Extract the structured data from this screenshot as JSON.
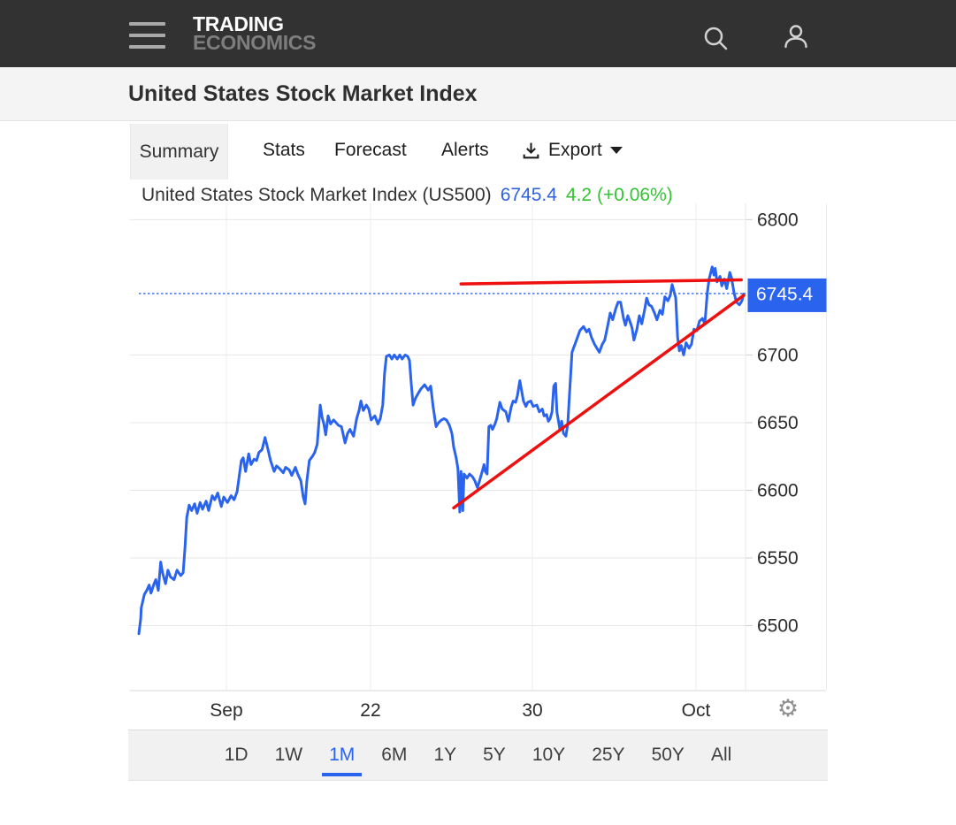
{
  "header": {
    "logo_line1": "TRADING",
    "logo_line2": "ECONOMICS"
  },
  "icons": {
    "settings_glyph": "⚙",
    "menu": "hamburger-menu",
    "search": "magnifier",
    "account": "person-outline",
    "export": "download-arrow-tray",
    "caret": "caret-down"
  },
  "title_bar": {
    "title": "United States Stock Market Index"
  },
  "tabs": {
    "items": [
      {
        "label": "Summary",
        "active": true
      },
      {
        "label": "Stats",
        "active": false
      },
      {
        "label": "Forecast",
        "active": false
      },
      {
        "label": "Alerts",
        "active": false
      }
    ],
    "export_label": "Export"
  },
  "chart": {
    "title": "United States Stock Market Index (US500)",
    "price": "6745.4",
    "change": "4.2 (+0.06%)",
    "price_tag": "6745.4",
    "colors": {
      "line": "#2a63ee",
      "tag_bg": "#2a63ee",
      "trend": "#ee0f0f",
      "price_text": "#2e61de",
      "change_text": "#33c333",
      "grid_h": "#e7e7e7",
      "grid_v": "#ececec",
      "axis": "#d9d9d9",
      "tick": "#cfcfcf",
      "label": "#2b2b2b"
    }
  },
  "chart_data": {
    "type": "line",
    "title": "United States Stock Market Index (US500)",
    "last_price": 6745.4,
    "change": 4.2,
    "change_pct": "+0.06%",
    "ylim": [
      6452,
      6812
    ],
    "y_ticks": [
      6800,
      6700,
      6650,
      6600,
      6550,
      6500
    ],
    "x_ticks": [
      {
        "pct": 14.43,
        "label": "Sep"
      },
      {
        "pct": 38.19,
        "label": "22"
      },
      {
        "pct": 64.87,
        "label": "30"
      },
      {
        "pct": 91.84,
        "label": "Oct"
      }
    ],
    "current_price_line": 6745.4,
    "trendlines": [
      {
        "name": "resistance",
        "from": [
          53.1,
          6752.5
        ],
        "to": [
          99.3,
          6755.5
        ]
      },
      {
        "name": "support",
        "from": [
          51.9,
          6587
        ],
        "to": [
          99.7,
          6744
        ]
      }
    ],
    "series": [
      [
        0,
        6494
      ],
      [
        0.3,
        6505
      ],
      [
        0.4,
        6513
      ],
      [
        0.9,
        6523
      ],
      [
        1.3,
        6526
      ],
      [
        1.7,
        6530
      ],
      [
        2.0,
        6524
      ],
      [
        2.5,
        6531
      ],
      [
        2.8,
        6534
      ],
      [
        3.2,
        6526
      ],
      [
        3.6,
        6547
      ],
      [
        3.9,
        6539
      ],
      [
        4.4,
        6531
      ],
      [
        4.8,
        6541
      ],
      [
        5.2,
        6536
      ],
      [
        5.8,
        6534
      ],
      [
        6.3,
        6541
      ],
      [
        6.9,
        6537
      ],
      [
        7.3,
        6539
      ],
      [
        7.6,
        6557
      ],
      [
        7.9,
        6580
      ],
      [
        8.3,
        6589
      ],
      [
        8.7,
        6585
      ],
      [
        9.2,
        6590
      ],
      [
        9.6,
        6583
      ],
      [
        10.1,
        6591
      ],
      [
        10.5,
        6586
      ],
      [
        11.1,
        6592
      ],
      [
        11.5,
        6585
      ],
      [
        12.1,
        6596
      ],
      [
        12.5,
        6593
      ],
      [
        13.0,
        6598
      ],
      [
        13.6,
        6588
      ],
      [
        14.0,
        6595
      ],
      [
        14.6,
        6591
      ],
      [
        15.2,
        6596
      ],
      [
        15.7,
        6593
      ],
      [
        16.2,
        6599
      ],
      [
        16.5,
        6609
      ],
      [
        16.9,
        6622
      ],
      [
        17.2,
        6624
      ],
      [
        17.6,
        6614
      ],
      [
        18.1,
        6627
      ],
      [
        18.5,
        6619
      ],
      [
        19.0,
        6623
      ],
      [
        19.4,
        6622
      ],
      [
        19.8,
        6628
      ],
      [
        20.3,
        6630
      ],
      [
        20.8,
        6639
      ],
      [
        21.3,
        6630
      ],
      [
        21.7,
        6622
      ],
      [
        22.3,
        6614
      ],
      [
        22.7,
        6618
      ],
      [
        23.2,
        6616
      ],
      [
        23.8,
        6613
      ],
      [
        24.2,
        6617
      ],
      [
        24.8,
        6615
      ],
      [
        25.2,
        6611
      ],
      [
        25.8,
        6617
      ],
      [
        26.2,
        6612
      ],
      [
        26.7,
        6607
      ],
      [
        27.1,
        6595
      ],
      [
        27.4,
        6590
      ],
      [
        27.7,
        6607
      ],
      [
        28.1,
        6622
      ],
      [
        28.6,
        6625
      ],
      [
        29.0,
        6628
      ],
      [
        29.4,
        6634
      ],
      [
        29.9,
        6663
      ],
      [
        30.2,
        6654
      ],
      [
        30.5,
        6649
      ],
      [
        30.8,
        6641
      ],
      [
        31.2,
        6655
      ],
      [
        31.6,
        6649
      ],
      [
        32.1,
        6652
      ],
      [
        32.5,
        6650
      ],
      [
        32.9,
        6648
      ],
      [
        33.4,
        6647
      ],
      [
        34.0,
        6635
      ],
      [
        34.4,
        6642
      ],
      [
        34.8,
        6645
      ],
      [
        35.4,
        6640
      ],
      [
        35.9,
        6653
      ],
      [
        36.3,
        6659
      ],
      [
        36.6,
        6666
      ],
      [
        37.0,
        6659
      ],
      [
        37.5,
        6663
      ],
      [
        37.9,
        6660
      ],
      [
        38.3,
        6652
      ],
      [
        38.9,
        6655
      ],
      [
        39.4,
        6649
      ],
      [
        39.8,
        6653
      ],
      [
        40.2,
        6663
      ],
      [
        40.5,
        6686
      ],
      [
        40.8,
        6699
      ],
      [
        41.3,
        6700
      ],
      [
        41.7,
        6697
      ],
      [
        42.1,
        6700
      ],
      [
        42.6,
        6697
      ],
      [
        43.0,
        6700
      ],
      [
        43.4,
        6697
      ],
      [
        43.9,
        6700
      ],
      [
        44.3,
        6699
      ],
      [
        44.6,
        6696
      ],
      [
        44.9,
        6679
      ],
      [
        45.2,
        6663
      ],
      [
        45.6,
        6668
      ],
      [
        46.1,
        6672
      ],
      [
        46.5,
        6675
      ],
      [
        47.1,
        6678
      ],
      [
        47.7,
        6674
      ],
      [
        48.1,
        6677
      ],
      [
        48.5,
        6662
      ],
      [
        49.0,
        6647
      ],
      [
        49.4,
        6650
      ],
      [
        49.9,
        6652
      ],
      [
        50.3,
        6653
      ],
      [
        50.7,
        6652
      ],
      [
        51.2,
        6648
      ],
      [
        51.6,
        6642
      ],
      [
        51.9,
        6632
      ],
      [
        52.3,
        6624
      ],
      [
        52.6,
        6616
      ],
      [
        52.9,
        6584
      ],
      [
        53.1,
        6614
      ],
      [
        53.4,
        6585
      ],
      [
        53.6,
        6612
      ],
      [
        54.1,
        6609
      ],
      [
        54.5,
        6612
      ],
      [
        55.0,
        6610
      ],
      [
        55.4,
        6607
      ],
      [
        55.8,
        6602
      ],
      [
        56.1,
        6606
      ],
      [
        56.6,
        6614
      ],
      [
        56.9,
        6619
      ],
      [
        57.1,
        6614
      ],
      [
        57.4,
        6612
      ],
      [
        57.7,
        6647
      ],
      [
        58.0,
        6648
      ],
      [
        58.3,
        6645
      ],
      [
        58.7,
        6649
      ],
      [
        59.0,
        6653
      ],
      [
        59.5,
        6665
      ],
      [
        59.9,
        6660
      ],
      [
        60.5,
        6658
      ],
      [
        60.9,
        6651
      ],
      [
        61.4,
        6662
      ],
      [
        61.7,
        6666
      ],
      [
        62.1,
        6665
      ],
      [
        62.4,
        6670
      ],
      [
        62.8,
        6681
      ],
      [
        63.4,
        6666
      ],
      [
        63.8,
        6662
      ],
      [
        64.1,
        6665
      ],
      [
        64.6,
        6666
      ],
      [
        65.0,
        6662
      ],
      [
        65.6,
        6663
      ],
      [
        66.0,
        6658
      ],
      [
        66.5,
        6660
      ],
      [
        66.8,
        6655
      ],
      [
        67.2,
        6656
      ],
      [
        67.5,
        6651
      ],
      [
        67.8,
        6653
      ],
      [
        68.1,
        6658
      ],
      [
        68.4,
        6677
      ],
      [
        68.7,
        6679
      ],
      [
        68.9,
        6658
      ],
      [
        69.4,
        6645
      ],
      [
        69.7,
        6651
      ],
      [
        70.0,
        6642
      ],
      [
        70.4,
        6640
      ],
      [
        70.7,
        6649
      ],
      [
        71.1,
        6679
      ],
      [
        71.4,
        6702
      ],
      [
        71.9,
        6708
      ],
      [
        72.3,
        6713
      ],
      [
        72.7,
        6718
      ],
      [
        73.3,
        6721
      ],
      [
        73.8,
        6717
      ],
      [
        74.2,
        6719
      ],
      [
        74.6,
        6713
      ],
      [
        75.1,
        6708
      ],
      [
        75.5,
        6705
      ],
      [
        75.9,
        6702
      ],
      [
        76.4,
        6708
      ],
      [
        76.8,
        6711
      ],
      [
        77.3,
        6722
      ],
      [
        77.7,
        6731
      ],
      [
        78.1,
        6726
      ],
      [
        78.6,
        6734
      ],
      [
        79.0,
        6739
      ],
      [
        79.4,
        6739
      ],
      [
        79.9,
        6727
      ],
      [
        80.2,
        6722
      ],
      [
        80.6,
        6729
      ],
      [
        81.0,
        6724
      ],
      [
        81.3,
        6720
      ],
      [
        81.6,
        6711
      ],
      [
        82.1,
        6719
      ],
      [
        82.5,
        6729
      ],
      [
        82.9,
        6723
      ],
      [
        83.4,
        6734
      ],
      [
        83.7,
        6742
      ],
      [
        84.1,
        6737
      ],
      [
        84.5,
        6736
      ],
      [
        85.0,
        6731
      ],
      [
        85.4,
        6726
      ],
      [
        85.9,
        6733
      ],
      [
        86.3,
        6730
      ],
      [
        86.7,
        6743
      ],
      [
        87.2,
        6740
      ],
      [
        87.6,
        6744
      ],
      [
        87.9,
        6752
      ],
      [
        88.2,
        6747
      ],
      [
        88.5,
        6742
      ],
      [
        88.8,
        6713
      ],
      [
        89.1,
        6703
      ],
      [
        89.4,
        6707
      ],
      [
        89.8,
        6700
      ],
      [
        90.2,
        6709
      ],
      [
        90.7,
        6705
      ],
      [
        91.1,
        6708
      ],
      [
        91.5,
        6719
      ],
      [
        92.0,
        6718
      ],
      [
        92.4,
        6725
      ],
      [
        92.9,
        6727
      ],
      [
        93.3,
        6723
      ],
      [
        93.7,
        6746
      ],
      [
        94.0,
        6756
      ],
      [
        94.5,
        6765
      ],
      [
        94.8,
        6759
      ],
      [
        95.0,
        6764
      ],
      [
        95.3,
        6754
      ],
      [
        95.8,
        6758
      ],
      [
        96.1,
        6751
      ],
      [
        96.5,
        6756
      ],
      [
        96.9,
        6749
      ],
      [
        97.4,
        6761
      ],
      [
        97.7,
        6757
      ],
      [
        98.1,
        6746
      ],
      [
        98.5,
        6739
      ],
      [
        99.0,
        6737
      ],
      [
        99.4,
        6740
      ],
      [
        99.7,
        6745
      ]
    ]
  },
  "range_selector": {
    "options": [
      "1D",
      "1W",
      "1M",
      "6M",
      "1Y",
      "5Y",
      "10Y",
      "25Y",
      "50Y",
      "All"
    ],
    "active": "1M"
  }
}
